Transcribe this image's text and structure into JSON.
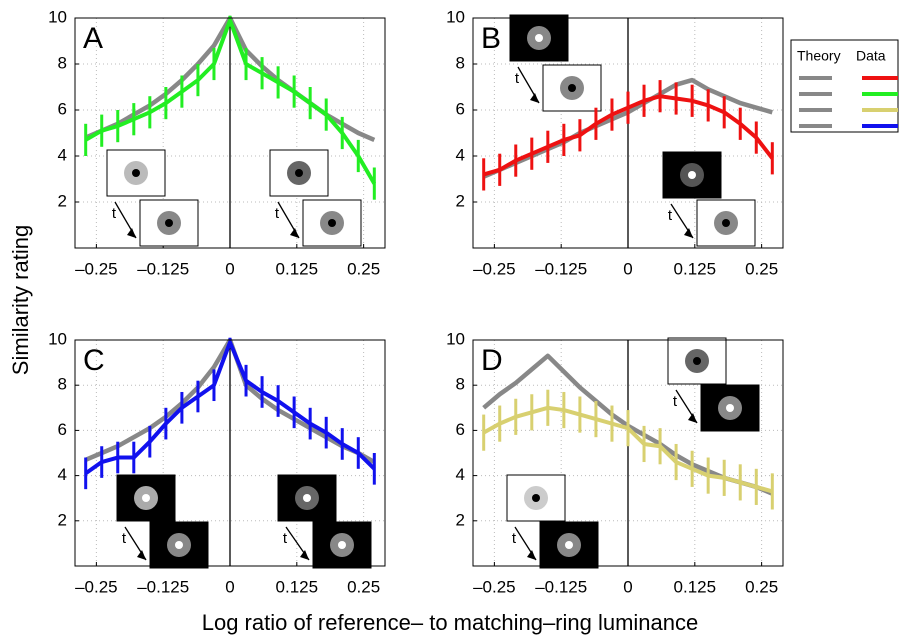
{
  "chart_data": [
    {
      "type": "line",
      "title": "A",
      "x": [
        -0.27,
        -0.24,
        -0.21,
        -0.18,
        -0.15,
        -0.12,
        -0.09,
        -0.06,
        -0.03,
        0,
        0.03,
        0.06,
        0.09,
        0.12,
        0.15,
        0.18,
        0.21,
        0.24,
        0.27
      ],
      "series": [
        {
          "color": "#888888",
          "values": [
            4.8,
            5.1,
            5.4,
            5.8,
            6.2,
            6.7,
            7.3,
            8.0,
            8.8,
            10,
            8.6,
            7.9,
            7.3,
            6.8,
            6.3,
            5.8,
            5.4,
            5.0,
            4.7
          ]
        },
        {
          "color": "#22ee22",
          "values": [
            4.7,
            5.1,
            5.3,
            5.6,
            5.9,
            6.3,
            6.8,
            7.3,
            8.0,
            9.9,
            8.0,
            7.6,
            7.2,
            6.8,
            6.3,
            5.8,
            5.0,
            4.0,
            2.8
          ],
          "errors": [
            0.7,
            0.7,
            0.7,
            0.7,
            0.7,
            0.7,
            0.7,
            0.7,
            0.7,
            0.2,
            0.7,
            0.7,
            0.7,
            0.7,
            0.7,
            0.7,
            0.7,
            0.7,
            0.7
          ]
        }
      ],
      "xlim": [
        -0.29,
        0.29
      ],
      "ylim": [
        0,
        10
      ],
      "xticks": [
        {
          "value": -0.25,
          "label": "–0.25"
        },
        {
          "value": -0.125,
          "label": "–0.125"
        },
        0,
        0.125,
        0.25
      ],
      "yticks": [
        2,
        4,
        6,
        8,
        10
      ],
      "grid": true,
      "zero_line": true
    },
    {
      "type": "line",
      "title": "B",
      "x": [
        -0.27,
        -0.24,
        -0.21,
        -0.18,
        -0.15,
        -0.12,
        -0.09,
        -0.06,
        -0.03,
        0,
        0.03,
        0.06,
        0.09,
        0.12,
        0.15,
        0.18,
        0.21,
        0.24,
        0.27
      ],
      "series": [
        {
          "color": "#888888",
          "values": [
            3.1,
            3.4,
            3.7,
            4.0,
            4.3,
            4.6,
            5.0,
            5.3,
            5.6,
            5.9,
            6.3,
            6.7,
            7.1,
            7.3,
            6.9,
            6.6,
            6.3,
            6.1,
            5.9
          ]
        },
        {
          "color": "#ee1111",
          "values": [
            3.2,
            3.4,
            3.8,
            4.1,
            4.4,
            4.7,
            4.9,
            5.4,
            5.8,
            6.1,
            6.4,
            6.6,
            6.5,
            6.4,
            6.2,
            5.9,
            5.4,
            4.8,
            3.9
          ],
          "errors": [
            0.7,
            0.7,
            0.7,
            0.7,
            0.7,
            0.7,
            0.7,
            0.7,
            0.7,
            0.7,
            0.7,
            0.7,
            0.7,
            0.7,
            0.7,
            0.7,
            0.7,
            0.7,
            0.7
          ]
        }
      ],
      "xlim": [
        -0.29,
        0.29
      ],
      "ylim": [
        0,
        10
      ],
      "xticks": [
        {
          "value": -0.25,
          "label": "–0.25"
        },
        {
          "value": -0.125,
          "label": "–0.125"
        },
        0,
        0.125,
        0.25
      ],
      "yticks": [
        2,
        4,
        6,
        8,
        10
      ],
      "grid": true,
      "zero_line": true
    },
    {
      "type": "line",
      "title": "C",
      "x": [
        -0.27,
        -0.24,
        -0.21,
        -0.18,
        -0.15,
        -0.12,
        -0.09,
        -0.06,
        -0.03,
        0,
        0.03,
        0.06,
        0.09,
        0.12,
        0.15,
        0.18,
        0.21,
        0.24,
        0.27
      ],
      "series": [
        {
          "color": "#888888",
          "values": [
            4.7,
            5.0,
            5.3,
            5.7,
            6.1,
            6.6,
            7.2,
            7.9,
            8.8,
            10,
            8.0,
            7.4,
            6.9,
            6.5,
            6.1,
            5.7,
            5.3,
            5.0,
            4.6
          ]
        },
        {
          "color": "#1111ee",
          "values": [
            4.1,
            4.6,
            4.8,
            4.8,
            5.5,
            6.3,
            7.0,
            7.5,
            8.0,
            9.9,
            8.2,
            7.7,
            7.3,
            6.8,
            6.3,
            5.9,
            5.4,
            5.0,
            4.3
          ],
          "errors": [
            0.7,
            0.7,
            0.7,
            0.7,
            0.7,
            0.7,
            0.7,
            0.7,
            0.7,
            0.2,
            0.7,
            0.7,
            0.7,
            0.7,
            0.7,
            0.7,
            0.7,
            0.7,
            0.7
          ]
        }
      ],
      "xlim": [
        -0.29,
        0.29
      ],
      "ylim": [
        0,
        10
      ],
      "xticks": [
        {
          "value": -0.25,
          "label": "–0.25"
        },
        {
          "value": -0.125,
          "label": "–0.125"
        },
        0,
        0.125,
        0.25
      ],
      "yticks": [
        2,
        4,
        6,
        8,
        10
      ],
      "grid": true,
      "zero_line": true
    },
    {
      "type": "line",
      "title": "D",
      "x": [
        -0.27,
        -0.24,
        -0.21,
        -0.18,
        -0.15,
        -0.12,
        -0.09,
        -0.06,
        -0.03,
        0,
        0.03,
        0.06,
        0.09,
        0.12,
        0.15,
        0.18,
        0.21,
        0.24,
        0.27
      ],
      "series": [
        {
          "color": "#888888",
          "values": [
            7.0,
            7.6,
            8.1,
            8.7,
            9.3,
            8.6,
            7.9,
            7.3,
            6.7,
            6.2,
            5.8,
            5.4,
            4.9,
            4.5,
            4.2,
            3.9,
            3.7,
            3.5,
            3.2
          ]
        },
        {
          "color": "#d8d070",
          "values": [
            5.9,
            6.3,
            6.6,
            6.8,
            7.0,
            6.9,
            6.7,
            6.5,
            6.3,
            6.1,
            5.4,
            5.3,
            4.6,
            4.3,
            4.0,
            3.9,
            3.7,
            3.5,
            3.3
          ],
          "errors": [
            0.8,
            0.8,
            0.8,
            0.8,
            0.8,
            0.8,
            0.8,
            0.8,
            0.8,
            0.8,
            0.8,
            0.8,
            0.8,
            0.8,
            0.8,
            0.8,
            0.8,
            0.8,
            0.8
          ]
        }
      ],
      "xlim": [
        -0.29,
        0.29
      ],
      "ylim": [
        0,
        10
      ],
      "xticks": [
        {
          "value": -0.25,
          "label": "–0.25"
        },
        {
          "value": -0.125,
          "label": "–0.125"
        },
        0,
        0.125,
        0.25
      ],
      "yticks": [
        2,
        4,
        6,
        8,
        10
      ],
      "grid": true,
      "zero_line": true
    }
  ],
  "x_label": "Log ratio of reference– to matching–ring luminance",
  "y_label": "Similarity rating",
  "time_label": "t",
  "legend": {
    "headers": [
      "Theory",
      "Data"
    ],
    "theory_color": "#888888",
    "data_colors": [
      "#ee1111",
      "#22ee22",
      "#d8d070",
      "#1111ee"
    ]
  }
}
